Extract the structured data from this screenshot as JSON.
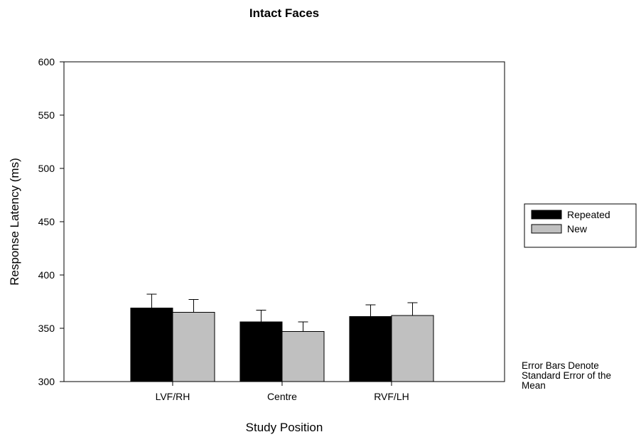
{
  "chart_data": {
    "type": "bar",
    "title": "Intact Faces",
    "xlabel": "Study Position",
    "ylabel": "Response Latency (ms)",
    "categories": [
      "LVF/RH",
      "Centre",
      "RVF/LH"
    ],
    "ylim": [
      300,
      600
    ],
    "yticks": [
      300,
      350,
      400,
      450,
      500,
      550,
      600
    ],
    "series": [
      {
        "name": "Repeated",
        "color": "#000000",
        "values": [
          369,
          356,
          361
        ],
        "error": [
          13,
          11,
          11
        ]
      },
      {
        "name": "New",
        "color": "#c0c0c0",
        "values": [
          365,
          347,
          362
        ],
        "error": [
          12,
          9,
          12
        ]
      }
    ],
    "legend_position": "right",
    "grid": false
  },
  "note": {
    "lines": [
      "Error Bars Denote",
      "Standard Error of the",
      "Mean"
    ]
  }
}
